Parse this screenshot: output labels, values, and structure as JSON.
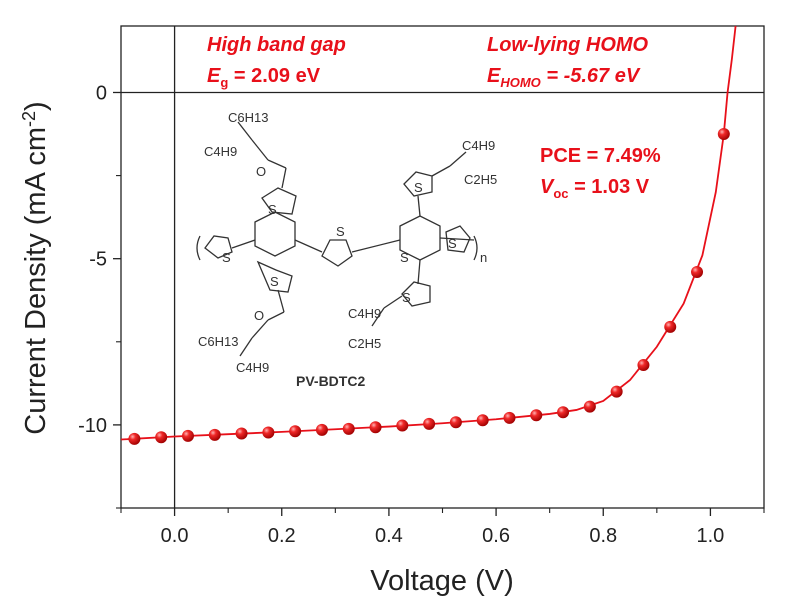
{
  "chart_data": {
    "type": "line",
    "xlabel": "Voltage (V)",
    "ylabel_main": "Current Density (mA cm",
    "ylabel_sup": "-2",
    "ylabel_close": ")",
    "xlim": [
      -0.1,
      1.1
    ],
    "ylim": [
      -12.5,
      2.0
    ],
    "x_ticks": [
      0.0,
      0.2,
      0.4,
      0.6,
      0.8,
      1.0
    ],
    "x_tick_labels": [
      "0.0",
      "0.2",
      "0.4",
      "0.6",
      "0.8",
      "1.0"
    ],
    "y_ticks": [
      0,
      -5,
      -10
    ],
    "y_tick_labels": [
      "0",
      "-5",
      "-10"
    ],
    "series": [
      {
        "color": "#e8101a",
        "marker": "circle",
        "points": [
          {
            "x": -0.075,
            "y": -10.42
          },
          {
            "x": -0.025,
            "y": -10.37
          },
          {
            "x": 0.025,
            "y": -10.33
          },
          {
            "x": 0.075,
            "y": -10.3
          },
          {
            "x": 0.125,
            "y": -10.26
          },
          {
            "x": 0.175,
            "y": -10.23
          },
          {
            "x": 0.225,
            "y": -10.19
          },
          {
            "x": 0.275,
            "y": -10.15
          },
          {
            "x": 0.325,
            "y": -10.12
          },
          {
            "x": 0.375,
            "y": -10.07
          },
          {
            "x": 0.425,
            "y": -10.02
          },
          {
            "x": 0.475,
            "y": -9.97
          },
          {
            "x": 0.525,
            "y": -9.92
          },
          {
            "x": 0.575,
            "y": -9.86
          },
          {
            "x": 0.625,
            "y": -9.79
          },
          {
            "x": 0.675,
            "y": -9.71
          },
          {
            "x": 0.725,
            "y": -9.62
          },
          {
            "x": 0.775,
            "y": -9.45
          },
          {
            "x": 0.825,
            "y": -9.0
          },
          {
            "x": 0.875,
            "y": -8.2
          },
          {
            "x": 0.925,
            "y": -7.05
          },
          {
            "x": 0.975,
            "y": -5.4
          },
          {
            "x": 1.025,
            "y": -1.25
          }
        ]
      }
    ],
    "fit_curve": [
      {
        "x": -0.1,
        "y": -10.44
      },
      {
        "x": 0.0,
        "y": -10.35
      },
      {
        "x": 0.1,
        "y": -10.28
      },
      {
        "x": 0.2,
        "y": -10.21
      },
      {
        "x": 0.3,
        "y": -10.13
      },
      {
        "x": 0.4,
        "y": -10.05
      },
      {
        "x": 0.5,
        "y": -9.95
      },
      {
        "x": 0.6,
        "y": -9.83
      },
      {
        "x": 0.7,
        "y": -9.67
      },
      {
        "x": 0.75,
        "y": -9.55
      },
      {
        "x": 0.8,
        "y": -9.28
      },
      {
        "x": 0.85,
        "y": -8.65
      },
      {
        "x": 0.9,
        "y": -7.65
      },
      {
        "x": 0.95,
        "y": -6.35
      },
      {
        "x": 0.985,
        "y": -4.9
      },
      {
        "x": 1.01,
        "y": -3.0
      },
      {
        "x": 1.025,
        "y": -1.25
      },
      {
        "x": 1.032,
        "y": 0.0
      },
      {
        "x": 1.04,
        "y": 1.0
      },
      {
        "x": 1.047,
        "y": 2.0
      }
    ]
  },
  "annotations": {
    "left_line1": "High band gap",
    "eg_symbol": "E",
    "eg_sub": "g",
    "eg_value": " = 2.09 eV",
    "right_line1": "Low-lying HOMO",
    "ehomo_symbol": "E",
    "ehomo_sub": "HOMO",
    "ehomo_value": " = -5.67 eV",
    "pce": "PCE = 7.49%",
    "voc_symbol": "V",
    "voc_sub": "oc",
    "voc_value": " = 1.03 V"
  },
  "structure": {
    "name": "PV-BDTC2",
    "c6h13": "C6H13",
    "c4h9": "C4H9",
    "c2h5": "C2H5",
    "s": "S",
    "o": "O",
    "n": "n"
  },
  "colors": {
    "series": "#e8101a",
    "axis": "#222222"
  }
}
